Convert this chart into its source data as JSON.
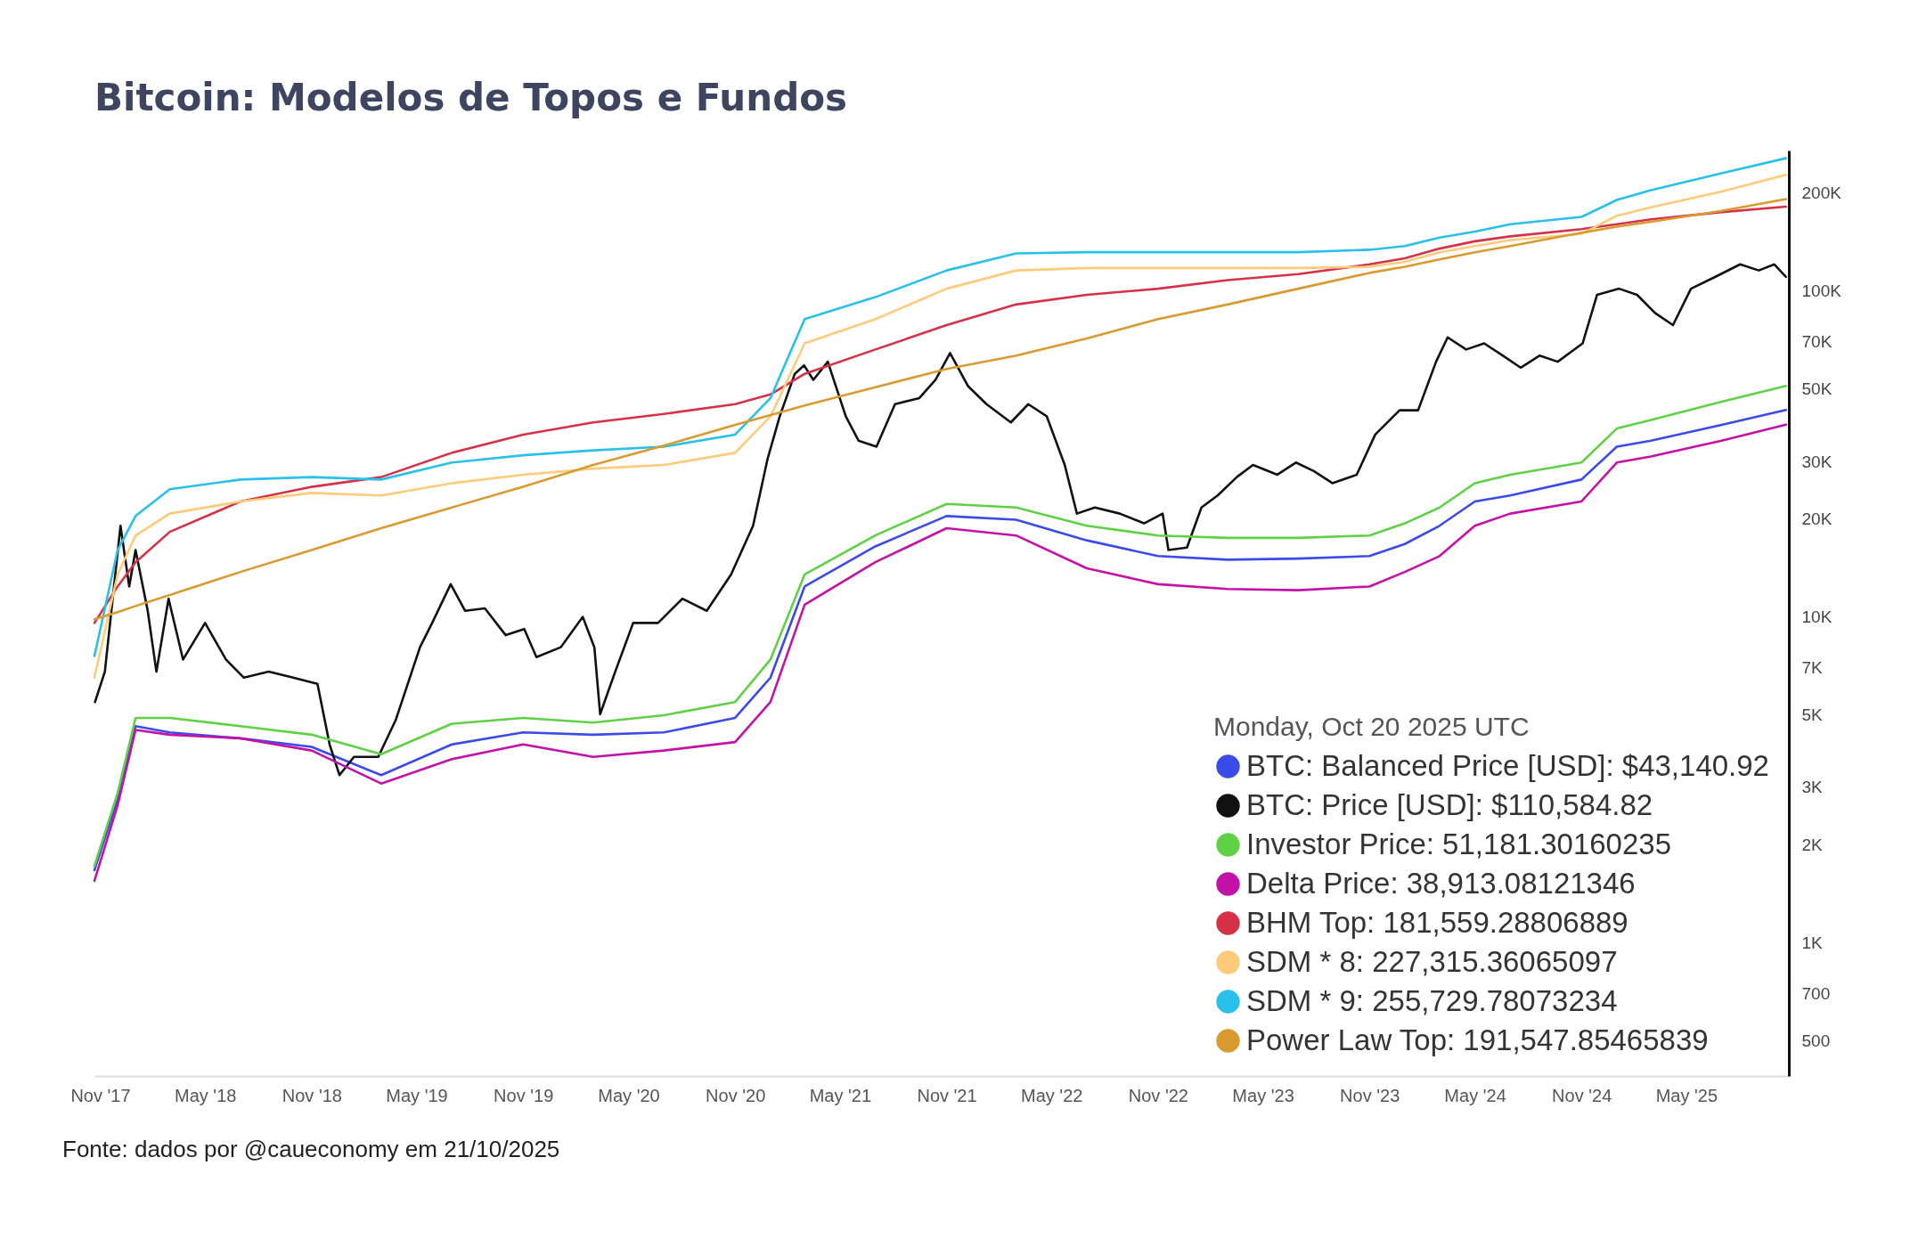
{
  "chart_data": {
    "type": "line",
    "title": "Bitcoin: Modelos de Topos e Fundos",
    "legend_title": "Monday, Oct 20 2025 UTC",
    "annotations": [
      "Fonte: dados por @caueconomy em 21/10/2025"
    ],
    "x": [
      "2017-10-22",
      "2017-12-01",
      "2018-01-01",
      "2018-03-01",
      "2018-07-01",
      "2018-11-01",
      "2019-03-01",
      "2019-07-01",
      "2019-11-01",
      "2020-03-01",
      "2020-07-01",
      "2020-11-01",
      "2021-01-01",
      "2021-03-01",
      "2021-07-01",
      "2021-11-01",
      "2022-03-01",
      "2022-07-01",
      "2022-11-01",
      "2023-03-01",
      "2023-07-01",
      "2023-11-01",
      "2024-01-01",
      "2024-03-01",
      "2024-05-01",
      "2024-07-01",
      "2024-11-01",
      "2025-01-01",
      "2025-03-01",
      "2025-07-01",
      "2025-10-20"
    ],
    "series": [
      {
        "name": "BTC: Balanced Price [USD]: $43,140.92",
        "color": "#3b4be8",
        "values": [
          1670,
          2760,
          4620,
          4420,
          4240,
          3990,
          3270,
          4060,
          4420,
          4350,
          4420,
          4900,
          6510,
          12400,
          16460,
          20400,
          19880,
          17180,
          15370,
          14980,
          15100,
          15370,
          16740,
          19040,
          22610,
          23600,
          26400,
          33290,
          34750,
          38850,
          43140.92
        ]
      },
      {
        "name": "BTC: Price [USD]: $110,584.82",
        "color": "#111111",
        "x": [
          "2017-10-23",
          "2017-11-09",
          "2017-12-06",
          "2017-12-21",
          "2018-01-01",
          "2018-01-22",
          "2018-02-06",
          "2018-02-27",
          "2018-03-24",
          "2018-05-01",
          "2018-06-06",
          "2018-07-07",
          "2018-08-19",
          "2018-09-30",
          "2018-11-11",
          "2018-12-02",
          "2018-12-19",
          "2019-01-13",
          "2019-02-24",
          "2019-03-26",
          "2019-05-07",
          "2019-05-28",
          "2019-06-29",
          "2019-07-24",
          "2019-08-27",
          "2019-10-02",
          "2019-11-03",
          "2019-11-24",
          "2020-01-05",
          "2020-02-12",
          "2020-03-03",
          "2020-03-13",
          "2020-04-08",
          "2020-05-09",
          "2020-06-21",
          "2020-08-02",
          "2020-09-13",
          "2020-10-25",
          "2020-12-02",
          "2020-12-27",
          "2021-01-17",
          "2021-02-12",
          "2021-02-28",
          "2021-03-16",
          "2021-04-10",
          "2021-05-11",
          "2021-06-02",
          "2021-07-03",
          "2021-08-04",
          "2021-09-15",
          "2021-10-13",
          "2021-11-07",
          "2021-12-08",
          "2022-01-09",
          "2022-02-20",
          "2022-03-22",
          "2022-04-23",
          "2022-05-24",
          "2022-06-14",
          "2022-07-15",
          "2022-08-27",
          "2022-10-08",
          "2022-11-09",
          "2022-11-19",
          "2022-12-21",
          "2023-01-15",
          "2023-02-12",
          "2023-03-17",
          "2023-04-14",
          "2023-05-26",
          "2023-06-27",
          "2023-07-28",
          "2023-08-29",
          "2023-10-10",
          "2023-11-11",
          "2023-12-23",
          "2024-01-24",
          "2024-02-24",
          "2024-03-15",
          "2024-04-16",
          "2024-05-17",
          "2024-06-18",
          "2024-07-19",
          "2024-08-21",
          "2024-09-21",
          "2024-11-03",
          "2024-11-28",
          "2025-01-05",
          "2025-02-05",
          "2025-03-08",
          "2025-04-08",
          "2025-05-09",
          "2025-06-21",
          "2025-08-02",
          "2025-09-03",
          "2025-09-30",
          "2025-10-20"
        ],
        "values": [
          5480,
          6790,
          19040,
          12400,
          16040,
          10440,
          6790,
          11370,
          7400,
          9580,
          7400,
          6510,
          6790,
          6510,
          6230,
          4060,
          3270,
          3720,
          3720,
          4820,
          8070,
          9580,
          12600,
          10440,
          10620,
          8790,
          9180,
          7530,
          8070,
          10000,
          8070,
          5030,
          6790,
          9580,
          9580,
          11370,
          10440,
          13500,
          19040,
          30540,
          41260,
          55730,
          59200,
          53400,
          60700,
          41260,
          34750,
          33290,
          44970,
          46950,
          53400,
          64500,
          51100,
          44970,
          39530,
          44970,
          41260,
          29260,
          20750,
          21670,
          20750,
          19370,
          20750,
          16040,
          16320,
          21670,
          23600,
          26860,
          29260,
          27320,
          29770,
          28030,
          25730,
          27320,
          36270,
          43070,
          43070,
          60700,
          72100,
          66180,
          69100,
          63400,
          58200,
          63400,
          60700,
          69100,
          97400,
          101700,
          97400,
          85700,
          78610,
          101700,
          110800,
          120800,
          115700,
          120800,
          110584.82
        ]
      },
      {
        "name": "Investor Price: 51,181.30160235",
        "color": "#5fd145",
        "values": [
          1720,
          2880,
          4900,
          4900,
          4620,
          4350,
          3790,
          4700,
          4900,
          4740,
          4990,
          5480,
          7400,
          13500,
          17780,
          22230,
          21670,
          19040,
          17780,
          17480,
          17480,
          17780,
          19370,
          21670,
          25730,
          27320,
          29770,
          37860,
          40210,
          45740,
          51181.30160235
        ]
      },
      {
        "name": "Delta Price: 38,913.08121346",
        "color": "#c412a8",
        "values": [
          1550,
          2640,
          4500,
          4350,
          4240,
          3890,
          3080,
          3660,
          4060,
          3720,
          3890,
          4130,
          5480,
          10900,
          14720,
          18720,
          17780,
          14100,
          12600,
          12180,
          12080,
          12400,
          13740,
          15370,
          19040,
          20750,
          22610,
          29770,
          31080,
          34750,
          38913.08121346
        ]
      },
      {
        "name": "BHM Top: 181,559.28806889",
        "color": "#d63247",
        "values": [
          9580,
          12400,
          14720,
          18240,
          22610,
          25070,
          26860,
          31890,
          36270,
          39530,
          41980,
          44970,
          48170,
          55730,
          66180,
          78610,
          90950,
          97400,
          101700,
          108000,
          112700,
          120800,
          126100,
          135000,
          142200,
          147200,
          155000,
          160300,
          166000,
          174700,
          181559.28806889
        ]
      },
      {
        "name": "SDM * 8: 227,315.36065097",
        "color": "#fecb7a",
        "values": [
          6510,
          13500,
          17780,
          20750,
          22610,
          24020,
          23600,
          25730,
          27320,
          28510,
          29260,
          31890,
          41260,
          69100,
          82000,
          101700,
          115700,
          117700,
          117700,
          117700,
          117700,
          118700,
          122900,
          131600,
          137400,
          143400,
          149700,
          170300,
          180800,
          202200,
          227315.36065097
        ]
      },
      {
        "name": "SDM * 9: 255,729.78073234",
        "color": "#29c0ea",
        "values": [
          7590,
          16040,
          20400,
          24640,
          26400,
          26860,
          26400,
          29770,
          31340,
          32440,
          33290,
          36270,
          46950,
          82000,
          95800,
          115700,
          130500,
          131600,
          131600,
          131600,
          131600,
          133900,
          137400,
          145900,
          152200,
          160300,
          168900,
          190400,
          203900,
          229900,
          255729.78073234
        ]
      },
      {
        "name": "Power Law Top: 191,547.85465839",
        "color": "#d99a30",
        "values": [
          9830,
          10350,
          10800,
          11670,
          13740,
          16040,
          18720,
          21670,
          25070,
          29260,
          33570,
          38850,
          41620,
          44580,
          50710,
          57680,
          63400,
          71500,
          82000,
          90950,
          101700,
          113700,
          118700,
          125000,
          131600,
          137400,
          151000,
          157600,
          163200,
          176200,
          191547.85465839
        ]
      }
    ],
    "xlim": [
      "2017-10-22",
      "2025-10-25"
    ],
    "xticks": [
      {
        "value": "2017-11-01",
        "label": "Nov '17"
      },
      {
        "value": "2018-05-01",
        "label": "May '18"
      },
      {
        "value": "2018-11-01",
        "label": "Nov '18"
      },
      {
        "value": "2019-05-01",
        "label": "May '19"
      },
      {
        "value": "2019-11-01",
        "label": "Nov '19"
      },
      {
        "value": "2020-05-01",
        "label": "May '20"
      },
      {
        "value": "2020-11-01",
        "label": "Nov '20"
      },
      {
        "value": "2021-05-01",
        "label": "May '21"
      },
      {
        "value": "2021-11-01",
        "label": "Nov '21"
      },
      {
        "value": "2022-05-01",
        "label": "May '22"
      },
      {
        "value": "2022-11-01",
        "label": "Nov '22"
      },
      {
        "value": "2023-05-01",
        "label": "May '23"
      },
      {
        "value": "2023-11-01",
        "label": "Nov '23"
      },
      {
        "value": "2024-05-01",
        "label": "May '24"
      },
      {
        "value": "2024-11-01",
        "label": "Nov '24"
      },
      {
        "value": "2025-05-01",
        "label": "May '25"
      }
    ],
    "ylim": [
      390,
      270000
    ],
    "yticks": [
      500,
      700,
      {
        "value": 1000,
        "label": "1K"
      },
      {
        "value": 2000,
        "label": "2K"
      },
      {
        "value": 3000,
        "label": "3K"
      },
      {
        "value": 5000,
        "label": "5K"
      },
      {
        "value": 7000,
        "label": "7K"
      },
      {
        "value": 10000,
        "label": "10K"
      },
      {
        "value": 20000,
        "label": "20K"
      },
      {
        "value": 30000,
        "label": "30K"
      },
      {
        "value": 50000,
        "label": "50K"
      },
      {
        "value": 70000,
        "label": "70K"
      },
      {
        "value": 100000,
        "label": "100K"
      },
      {
        "value": 200000,
        "label": "200K"
      }
    ],
    "log": true,
    "grid": false,
    "legend": "bottom right"
  }
}
